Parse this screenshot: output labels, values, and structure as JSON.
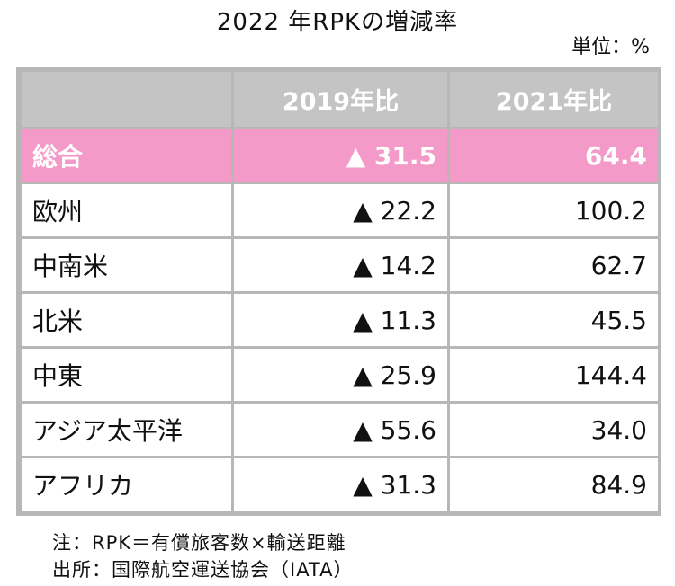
{
  "title": "2022 年RPKの増減率",
  "unit": "単位：%",
  "chart_data": {
    "type": "table",
    "title": "2022 年RPKの増減率",
    "columns": [
      "",
      "2019年比",
      "2021年比"
    ],
    "rows": [
      {
        "region": "総合",
        "vs2019": "▲ 31.5",
        "vs2021": "64.4",
        "highlight": true
      },
      {
        "region": "欧州",
        "vs2019": "▲ 22.2",
        "vs2021": "100.2"
      },
      {
        "region": "中南米",
        "vs2019": "▲ 14.2",
        "vs2021": "62.7"
      },
      {
        "region": "北米",
        "vs2019": "▲ 11.3",
        "vs2021": "45.5"
      },
      {
        "region": "中東",
        "vs2019": "▲ 25.9",
        "vs2021": "144.4"
      },
      {
        "region": "アジア太平洋",
        "vs2019": "▲ 55.6",
        "vs2021": "34.0"
      },
      {
        "region": "アフリカ",
        "vs2019": "▲ 31.3",
        "vs2021": "84.9"
      }
    ]
  },
  "colors": {
    "header_bg": "#c4c4c4",
    "highlight_bg": "#f49ac8",
    "border": "#b7b7b7"
  },
  "footer": {
    "note": "注：RPK＝有償旅客数×輸送距離",
    "source": "出所：国際航空運送協会（IATA）"
  }
}
